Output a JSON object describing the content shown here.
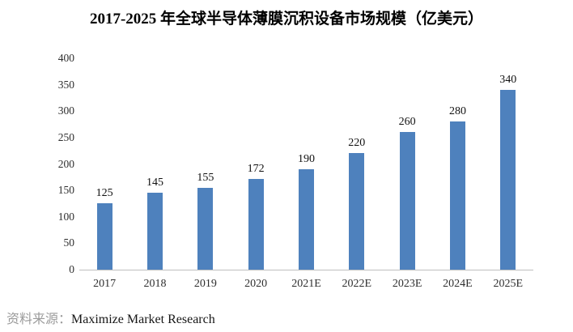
{
  "chart_data": {
    "type": "bar",
    "title": "2017-2025 年全球半导体薄膜沉积设备市场规模（亿美元）",
    "categories": [
      "2017",
      "2018",
      "2019",
      "2020",
      "2021E",
      "2022E",
      "2023E",
      "2024E",
      "2025E"
    ],
    "values": [
      125,
      145,
      155,
      172,
      190,
      220,
      260,
      280,
      340
    ],
    "xlabel": "",
    "ylabel": "",
    "ylim": [
      0,
      400
    ],
    "ytick_interval": 50,
    "grid": false,
    "legend": "none",
    "bar_color": "#4E81BD",
    "axis_line_color": "#bfbfbf"
  },
  "source": {
    "label": "资料来源：",
    "text": "Maximize Market Research"
  }
}
